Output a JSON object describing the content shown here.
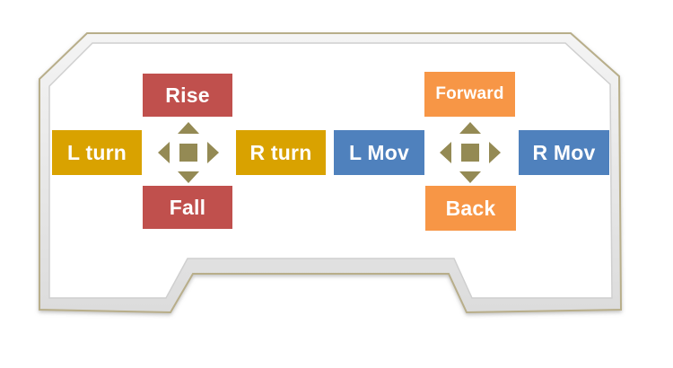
{
  "colors": {
    "rise_fall": "#c0504d",
    "turn": "#d9a200",
    "move": "#4f81bd",
    "forward_back": "#f79646",
    "arrow": "#948a54",
    "frame_stroke": "#c8bfa0"
  },
  "left_pad": {
    "up_label": "Rise",
    "down_label": "Fall",
    "left_label": "L turn",
    "right_label": "R turn",
    "dpad_icon": "four-way-arrow-icon"
  },
  "right_pad": {
    "up_label": "Forward",
    "down_label": "Back",
    "left_label": "L Mov",
    "right_label": "R Mov",
    "dpad_icon": "four-way-arrow-icon"
  }
}
